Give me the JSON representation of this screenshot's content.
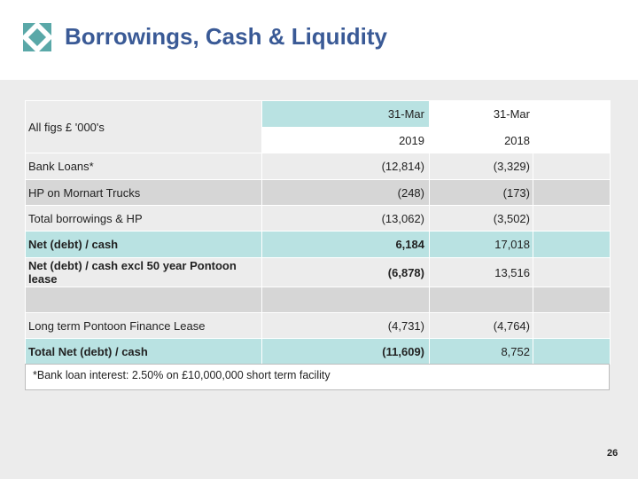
{
  "slide": {
    "title": "Borrowings, Cash & Liquidity",
    "page_number": "26",
    "accent_color": "#3a5a96",
    "logo_color": "#5aa8a8",
    "logo_icon": "diamond-logo-icon"
  },
  "table": {
    "units_label": "All figs £ '000's",
    "col_2019_month": "31-Mar",
    "col_2018_month": "31-Mar",
    "col_2019_year": "2019",
    "col_2018_year": "2018",
    "rows": [
      {
        "label": "Bank Loans*",
        "v2019": "(12,814)",
        "v2018": "(3,329)"
      },
      {
        "label": "HP on Mornart Trucks",
        "v2019": "(248)",
        "v2018": "(173)"
      },
      {
        "label": "Total borrowings & HP",
        "v2019": "(13,062)",
        "v2018": "(3,502)"
      },
      {
        "label": "Net (debt) / cash",
        "v2019": "6,184",
        "v2018": "17,018"
      },
      {
        "label": "Net (debt) / cash excl 50 year Pontoon lease",
        "v2019": "(6,878)",
        "v2018": "13,516"
      },
      {
        "label": "",
        "v2019": "",
        "v2018": ""
      },
      {
        "label": "Long term Pontoon Finance Lease",
        "v2019": "(4,731)",
        "v2018": "(4,764)"
      },
      {
        "label": "Total Net (debt) / cash",
        "v2019": "(11,609)",
        "v2018": "8,752"
      }
    ]
  },
  "footnote": "*Bank loan interest: 2.50% on £10,000,000 short term facility"
}
